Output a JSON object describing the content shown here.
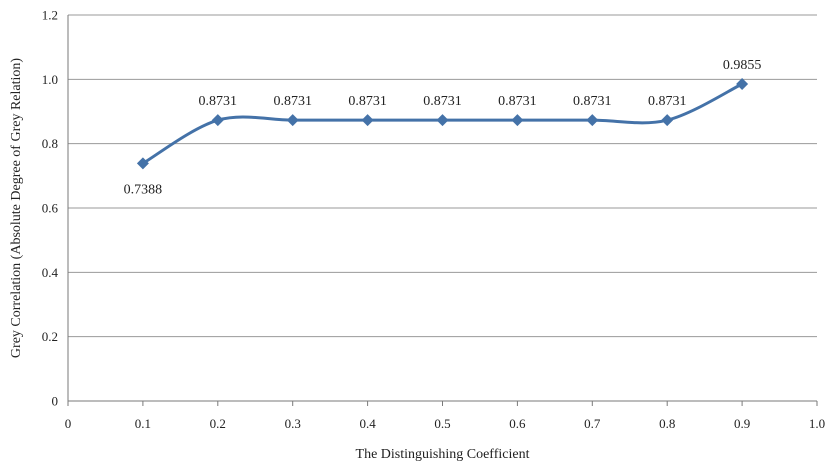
{
  "chart_data": {
    "type": "line",
    "title": "",
    "xlabel": "The Distinguishing Coefficient",
    "ylabel": "Grey Correlation (Absolute Degree of Grey Relation)",
    "xlim": [
      0,
      1.0
    ],
    "ylim": [
      0,
      1.2
    ],
    "x_ticks": [
      "0",
      "0.1",
      "0.2",
      "0.3",
      "0.4",
      "0.5",
      "0.6",
      "0.7",
      "0.8",
      "0.9",
      "1.0"
    ],
    "y_ticks": [
      "0",
      "0.2",
      "0.4",
      "0.6",
      "0.8",
      "1.0",
      "1.2"
    ],
    "grid": "horizontal",
    "smooth": true,
    "marker": "diamond",
    "color": "#4472a8",
    "series": [
      {
        "x": [
          0.1,
          0.2,
          0.3,
          0.4,
          0.5,
          0.6,
          0.7,
          0.8,
          0.9
        ],
        "values": [
          0.7388,
          0.8731,
          0.8731,
          0.8731,
          0.8731,
          0.8731,
          0.8731,
          0.8731,
          0.9855
        ],
        "labels": [
          "0.7388",
          "0.8731",
          "0.8731",
          "0.8731",
          "0.8731",
          "0.8731",
          "0.8731",
          "0.8731",
          "0.9855"
        ]
      }
    ]
  }
}
